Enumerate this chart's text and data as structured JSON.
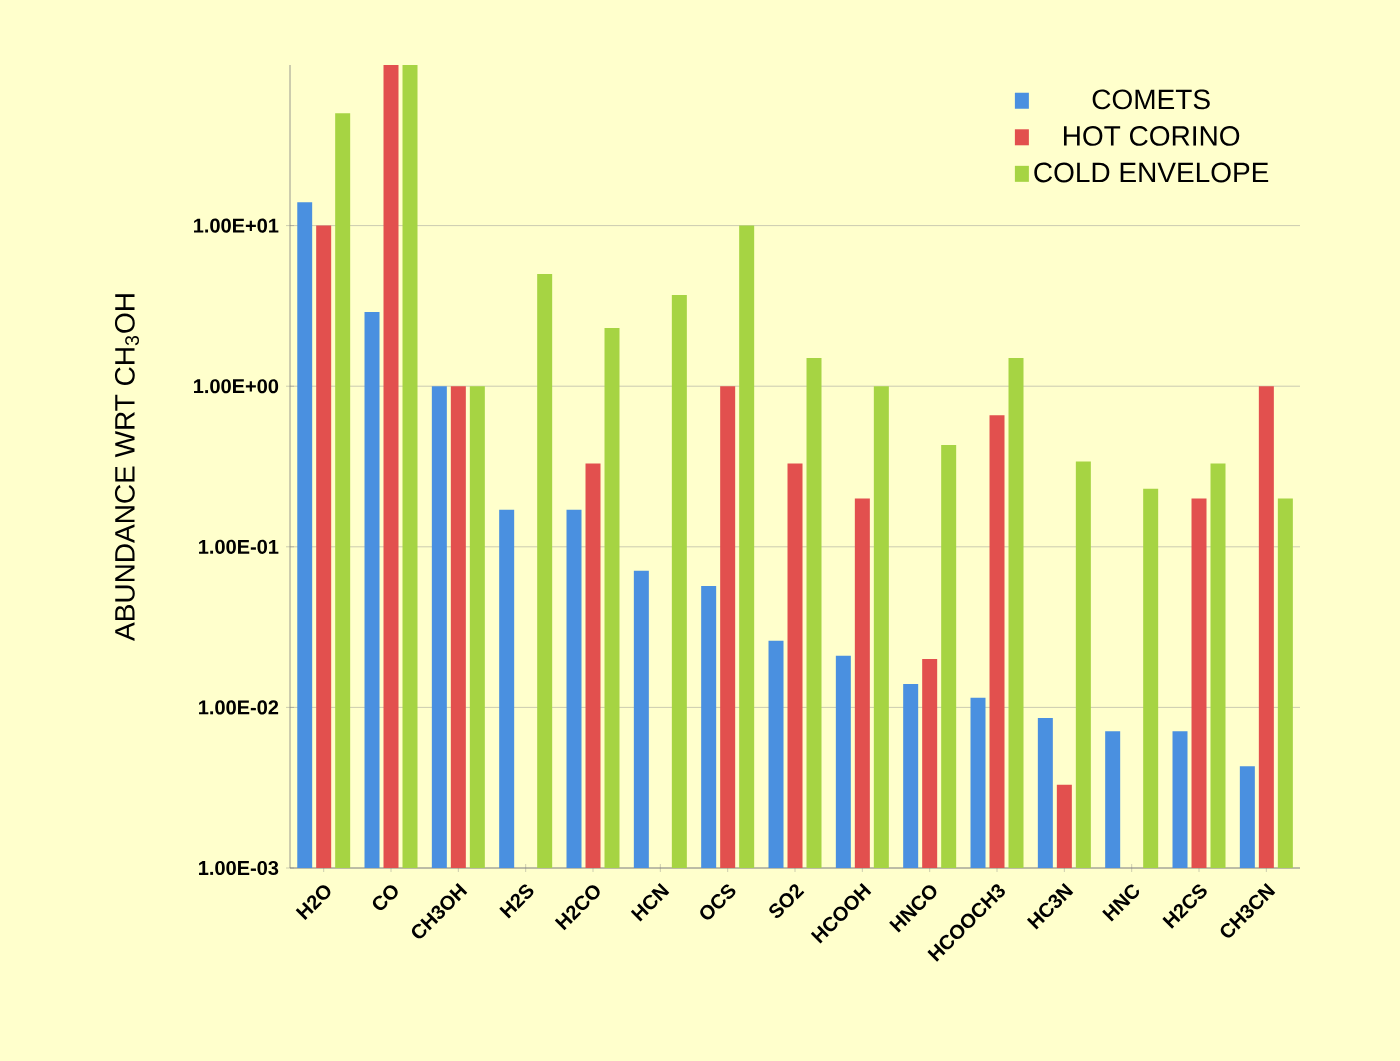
{
  "chart_data": {
    "type": "bar",
    "ylabel": "ABUNDANCE WRT CH$_{3}$OH",
    "categories": [
      "H2O",
      "CO",
      "CH3OH",
      "H2S",
      "H2CO",
      "HCN",
      "OCS",
      "SO2",
      "HCOOH",
      "HNCO",
      "HCOOCH3",
      "HC3N",
      "HNC",
      "H2CS",
      "CH3CN"
    ],
    "series": [
      {
        "name": "COMETS",
        "color": "#4a90e0",
        "values": [
          14,
          2.9,
          1,
          0.17,
          0.17,
          0.071,
          0.057,
          0.026,
          0.021,
          0.014,
          0.0115,
          0.0086,
          0.0071,
          0.0071,
          0.0043
        ]
      },
      {
        "name": "HOT CORINO",
        "color": "#e2504e",
        "values": [
          10,
          100,
          1,
          null,
          0.33,
          null,
          1,
          0.33,
          0.2,
          0.02,
          0.66,
          0.0033,
          null,
          0.2,
          1
        ]
      },
      {
        "name": "COLD ENVELOPE",
        "color": "#a6d443",
        "values": [
          50,
          100,
          1,
          5,
          2.3,
          3.7,
          10,
          1.5,
          1,
          0.43,
          1.5,
          0.34,
          0.23,
          0.33,
          0.2
        ]
      }
    ],
    "log": true,
    "ylim": [
      0.001,
      100
    ],
    "yticks": [
      {
        "value": 0.001,
        "label": "1.00E-03"
      },
      {
        "value": 0.01,
        "label": "1.00E-02"
      },
      {
        "value": 0.1,
        "label": "1.00E-01"
      },
      {
        "value": 1,
        "label": "1.00E+00"
      },
      {
        "value": 10,
        "label": "1.00E+01"
      }
    ],
    "grid": "y",
    "legend": "top right"
  }
}
